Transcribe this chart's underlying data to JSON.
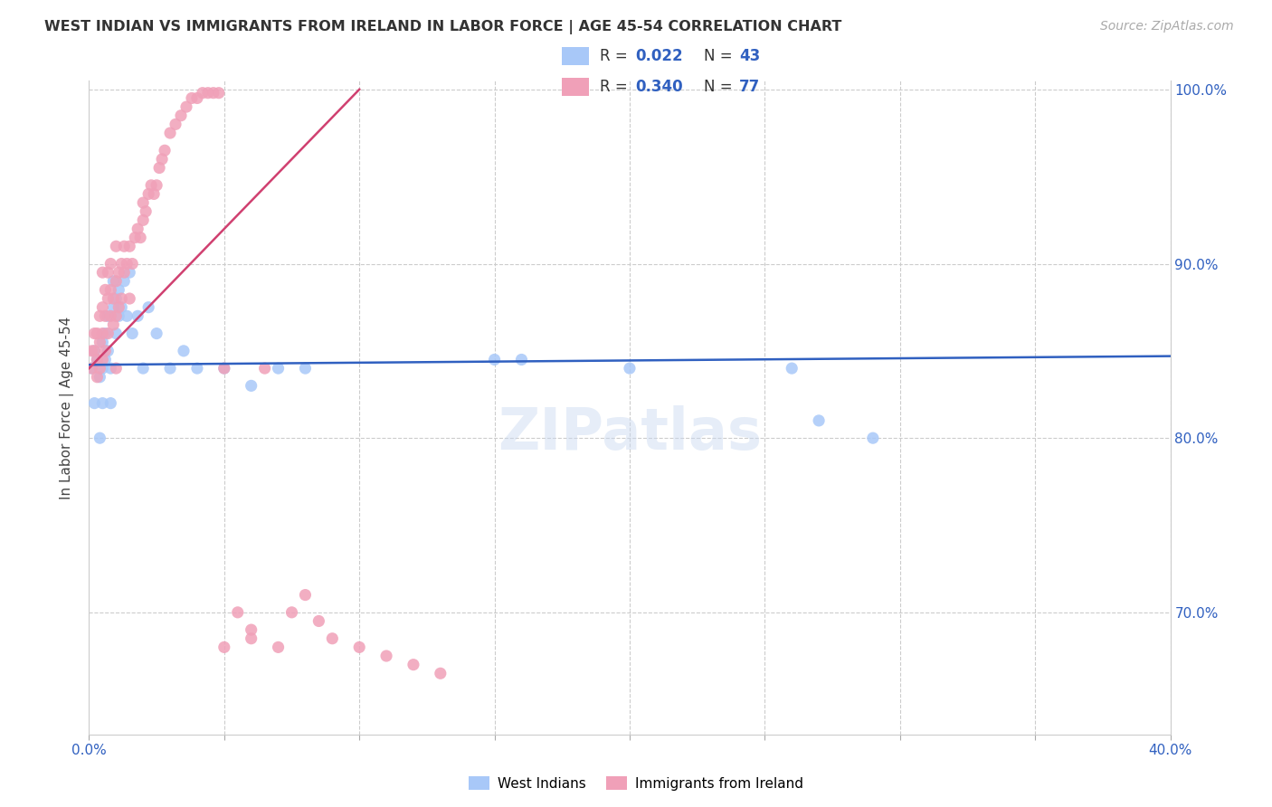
{
  "title": "WEST INDIAN VS IMMIGRANTS FROM IRELAND IN LABOR FORCE | AGE 45-54 CORRELATION CHART",
  "source": "Source: ZipAtlas.com",
  "ylabel": "In Labor Force | Age 45-54",
  "xlim": [
    0.0,
    0.4
  ],
  "ylim": [
    0.63,
    1.005
  ],
  "blue_R": 0.022,
  "blue_N": 43,
  "pink_R": 0.34,
  "pink_N": 77,
  "blue_color": "#a8c8f8",
  "pink_color": "#f0a0b8",
  "blue_line_color": "#3060c0",
  "pink_line_color": "#d04070",
  "legend_label_blue": "West Indians",
  "legend_label_pink": "Immigrants from Ireland",
  "blue_x": [
    0.001,
    0.002,
    0.002,
    0.003,
    0.004,
    0.004,
    0.005,
    0.005,
    0.005,
    0.006,
    0.006,
    0.007,
    0.007,
    0.008,
    0.008,
    0.009,
    0.009,
    0.01,
    0.01,
    0.011,
    0.011,
    0.012,
    0.013,
    0.014,
    0.015,
    0.016,
    0.018,
    0.02,
    0.022,
    0.025,
    0.03,
    0.035,
    0.04,
    0.05,
    0.06,
    0.07,
    0.08,
    0.15,
    0.16,
    0.2,
    0.26,
    0.27,
    0.29
  ],
  "blue_y": [
    0.84,
    0.85,
    0.82,
    0.845,
    0.835,
    0.8,
    0.855,
    0.84,
    0.82,
    0.845,
    0.86,
    0.85,
    0.87,
    0.84,
    0.82,
    0.89,
    0.875,
    0.86,
    0.88,
    0.87,
    0.885,
    0.875,
    0.89,
    0.87,
    0.895,
    0.86,
    0.87,
    0.84,
    0.875,
    0.86,
    0.84,
    0.85,
    0.84,
    0.84,
    0.83,
    0.84,
    0.84,
    0.845,
    0.845,
    0.84,
    0.84,
    0.81,
    0.8
  ],
  "pink_x": [
    0.001,
    0.001,
    0.002,
    0.002,
    0.003,
    0.003,
    0.003,
    0.004,
    0.004,
    0.004,
    0.005,
    0.005,
    0.005,
    0.005,
    0.006,
    0.006,
    0.006,
    0.007,
    0.007,
    0.007,
    0.008,
    0.008,
    0.008,
    0.009,
    0.009,
    0.01,
    0.01,
    0.01,
    0.01,
    0.011,
    0.011,
    0.012,
    0.012,
    0.013,
    0.013,
    0.014,
    0.015,
    0.015,
    0.016,
    0.017,
    0.018,
    0.019,
    0.02,
    0.02,
    0.021,
    0.022,
    0.023,
    0.024,
    0.025,
    0.026,
    0.027,
    0.028,
    0.03,
    0.032,
    0.034,
    0.036,
    0.038,
    0.04,
    0.042,
    0.044,
    0.046,
    0.048,
    0.05,
    0.055,
    0.06,
    0.065,
    0.07,
    0.075,
    0.08,
    0.085,
    0.09,
    0.1,
    0.11,
    0.12,
    0.13,
    0.05,
    0.06
  ],
  "pink_y": [
    0.84,
    0.85,
    0.85,
    0.86,
    0.835,
    0.845,
    0.86,
    0.855,
    0.84,
    0.87,
    0.845,
    0.86,
    0.875,
    0.895,
    0.85,
    0.87,
    0.885,
    0.86,
    0.88,
    0.895,
    0.87,
    0.885,
    0.9,
    0.865,
    0.88,
    0.84,
    0.87,
    0.89,
    0.91,
    0.875,
    0.895,
    0.88,
    0.9,
    0.895,
    0.91,
    0.9,
    0.88,
    0.91,
    0.9,
    0.915,
    0.92,
    0.915,
    0.925,
    0.935,
    0.93,
    0.94,
    0.945,
    0.94,
    0.945,
    0.955,
    0.96,
    0.965,
    0.975,
    0.98,
    0.985,
    0.99,
    0.995,
    0.995,
    0.998,
    0.998,
    0.998,
    0.998,
    0.84,
    0.7,
    0.69,
    0.84,
    0.68,
    0.7,
    0.71,
    0.695,
    0.685,
    0.68,
    0.675,
    0.67,
    0.665,
    0.68,
    0.685
  ]
}
